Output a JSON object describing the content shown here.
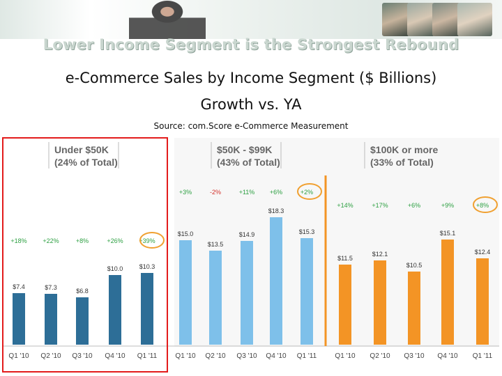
{
  "banner": {
    "name": "header-photo-banner"
  },
  "headline": "Lower Income Segment is the Strongest Rebound",
  "title_line1": "e-Commerce Sales by Income Segment ($ Billions)",
  "title_line2": "Growth vs. YA",
  "source": "Source: com.Score e-Commerce Measurement",
  "colors": {
    "under50": "#2d6e97",
    "mid": "#7ec0ea",
    "over100": "#f39425",
    "growth": "#2ea043",
    "neg": "#d3302a",
    "highlight": "#e31b1b",
    "circle": "#f0a030"
  },
  "chart_data": [
    {
      "type": "bar",
      "segment": [
        "Under $50K",
        "(24% of Total)"
      ],
      "categories": [
        "Q1 '10",
        "Q2 '10",
        "Q3 '10",
        "Q4 '10",
        "Q1 '11"
      ],
      "values": [
        7.4,
        7.3,
        6.8,
        10.0,
        10.3
      ],
      "value_labels": [
        "$7.4",
        "$7.3",
        "$6.8",
        "$10.0",
        "$10.3"
      ],
      "growth": [
        "+18%",
        "+22%",
        "+8%",
        "+26%",
        "+39%"
      ],
      "color": "#2d6e97",
      "highlighted": true
    },
    {
      "type": "bar",
      "segment": [
        "$50K - $99K",
        "(43% of Total)"
      ],
      "categories": [
        "Q1 '10",
        "Q2 '10",
        "Q3 '10",
        "Q4 '10",
        "Q1 '11"
      ],
      "values": [
        15.0,
        13.5,
        14.9,
        18.3,
        15.3
      ],
      "value_labels": [
        "$15.0",
        "$13.5",
        "$14.9",
        "$18.3",
        "$15.3"
      ],
      "growth": [
        "+3%",
        "-2%",
        "+11%",
        "+6%",
        "+2%"
      ],
      "color": "#7ec0ea"
    },
    {
      "type": "bar",
      "segment": [
        "$100K or more",
        "(33% of Total)"
      ],
      "categories": [
        "Q1 '10",
        "Q2 '10",
        "Q3 '10",
        "Q4 '10",
        "Q1 '11"
      ],
      "values": [
        11.5,
        12.1,
        10.5,
        15.1,
        12.4
      ],
      "value_labels": [
        "$11.5",
        "$12.1",
        "$10.5",
        "$15.1",
        "$12.4"
      ],
      "growth": [
        "+14%",
        "+17%",
        "+6%",
        "+9%",
        "+8%"
      ],
      "color": "#f39425"
    }
  ]
}
